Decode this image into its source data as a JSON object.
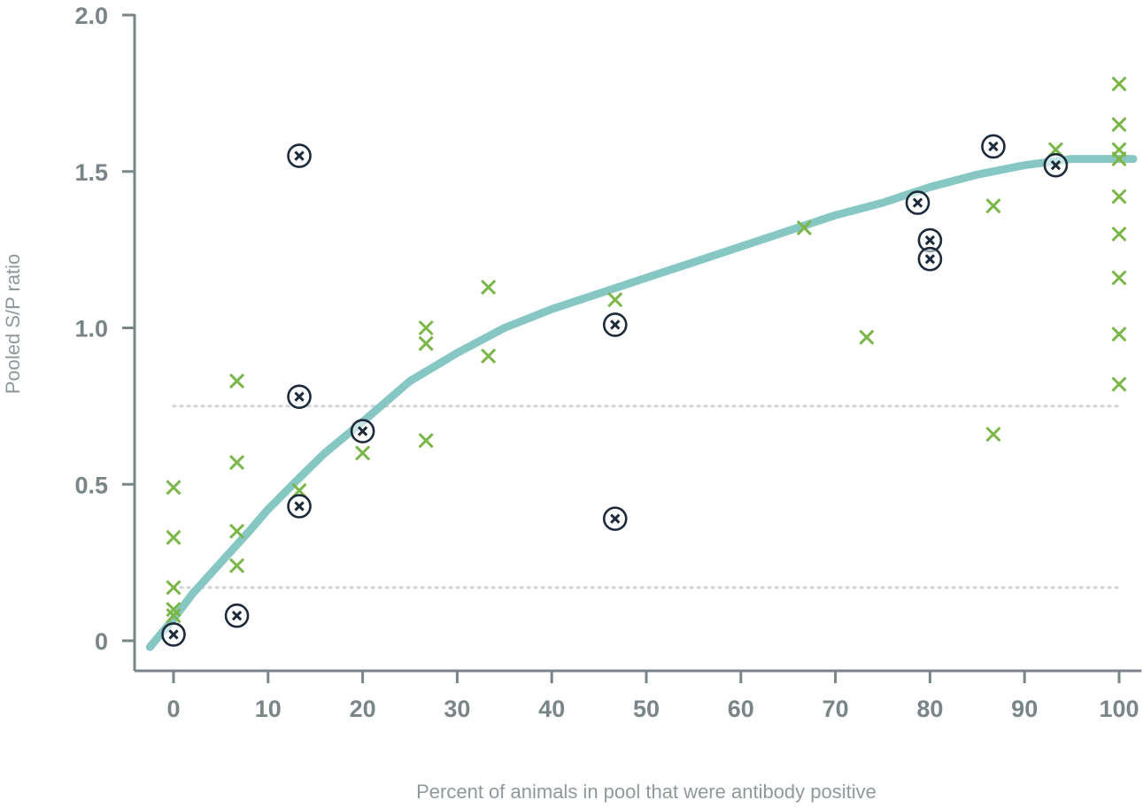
{
  "chart_data": {
    "type": "scatter",
    "title": "",
    "xlabel": "Percent of animals in pool that were antibody positive",
    "ylabel": "Pooled S/P ratio",
    "xlim": [
      -4,
      102
    ],
    "ylim": [
      0,
      2.0
    ],
    "x_ticks": [
      0,
      10,
      20,
      30,
      40,
      50,
      60,
      70,
      80,
      90,
      100
    ],
    "y_ticks": [
      0,
      0.5,
      1.0,
      1.5,
      2.0
    ],
    "y_tick_labels": [
      "0",
      "0.5",
      "1.0",
      "1.5",
      "2.0"
    ],
    "grid": false,
    "legend": "none",
    "reference_lines": [
      {
        "axis": "y",
        "value": 0.75,
        "style": "dotted"
      },
      {
        "axis": "y",
        "value": 0.17,
        "style": "dotted"
      }
    ],
    "colors": {
      "axis": "#7a8587",
      "cross": "#7ab648",
      "circled": "#1c2a3a",
      "curve": "#86c7c4",
      "refline": "#cfd4d4"
    },
    "series": [
      {
        "marker": "x",
        "color": "#7ab648",
        "points": [
          [
            0,
            0.49
          ],
          [
            0,
            0.33
          ],
          [
            0,
            0.17
          ],
          [
            0,
            0.1
          ],
          [
            0,
            0.08
          ],
          [
            6.7,
            0.83
          ],
          [
            6.7,
            0.57
          ],
          [
            6.7,
            0.35
          ],
          [
            6.7,
            0.24
          ],
          [
            13.3,
            0.48
          ],
          [
            20,
            0.6
          ],
          [
            26.7,
            1.0
          ],
          [
            26.7,
            0.95
          ],
          [
            26.7,
            0.64
          ],
          [
            33.3,
            1.13
          ],
          [
            33.3,
            0.91
          ],
          [
            46.7,
            1.09
          ],
          [
            66.7,
            1.32
          ],
          [
            73.3,
            0.97
          ],
          [
            86.7,
            1.39
          ],
          [
            86.7,
            0.66
          ],
          [
            93.3,
            1.57
          ],
          [
            100,
            1.78
          ],
          [
            100,
            1.65
          ],
          [
            100,
            1.57
          ],
          [
            100,
            1.54
          ],
          [
            100,
            1.42
          ],
          [
            100,
            1.3
          ],
          [
            100,
            1.16
          ],
          [
            100,
            0.98
          ],
          [
            100,
            0.82
          ]
        ]
      },
      {
        "marker": "circled-x",
        "color": "#1c2a3a",
        "points": [
          [
            0,
            0.02
          ],
          [
            6.7,
            0.08
          ],
          [
            13.3,
            1.55
          ],
          [
            13.3,
            0.78
          ],
          [
            13.3,
            0.43
          ],
          [
            20,
            0.67
          ],
          [
            46.7,
            1.01
          ],
          [
            46.7,
            0.39
          ],
          [
            78.7,
            1.4
          ],
          [
            80,
            1.28
          ],
          [
            80,
            1.22
          ],
          [
            86.7,
            1.58
          ],
          [
            93.3,
            1.52
          ]
        ]
      },
      {
        "type": "line",
        "style": "fitted-curve",
        "color": "#86c7c4",
        "x": [
          -2.5,
          0,
          2,
          5,
          8,
          10,
          13.3,
          16,
          20,
          25,
          30,
          35,
          40,
          45,
          50,
          55,
          60,
          65,
          70,
          75,
          80,
          85,
          90,
          95,
          100,
          101.5
        ],
        "y": [
          -0.02,
          0.07,
          0.15,
          0.25,
          0.35,
          0.42,
          0.52,
          0.6,
          0.7,
          0.83,
          0.92,
          1.0,
          1.06,
          1.11,
          1.16,
          1.21,
          1.26,
          1.31,
          1.36,
          1.4,
          1.45,
          1.49,
          1.52,
          1.54,
          1.54,
          1.54
        ]
      }
    ]
  }
}
